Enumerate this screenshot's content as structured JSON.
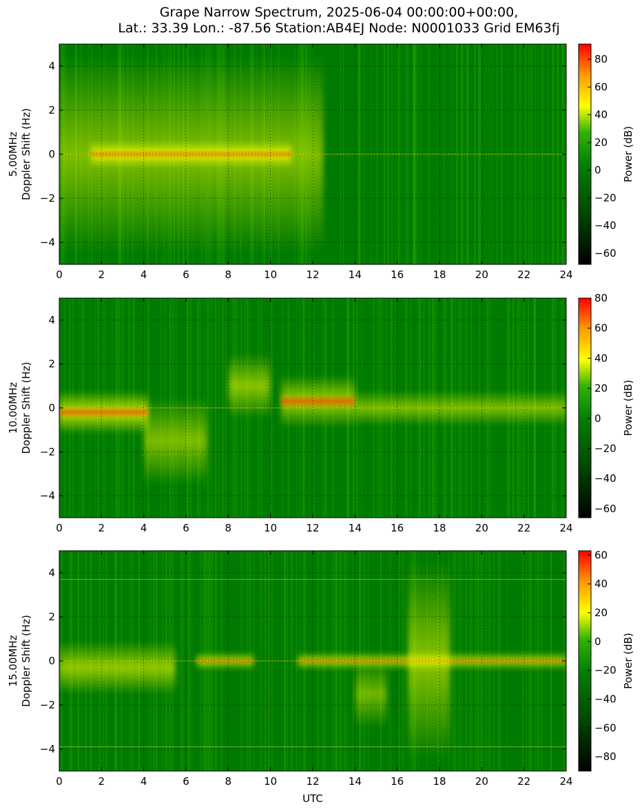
{
  "title": {
    "line1": "Grape Narrow Spectrum, 2025-06-04 00:00:00+00:00,",
    "line2": "Lat.: 33.39 Lon.: -87.56 Station:AB4EJ Node: N0001033 Grid EM63fj"
  },
  "colors": {
    "background_green": "#007a00",
    "mid_green": "#22a800",
    "yellow": "#ffff00",
    "orange": "#ff9900",
    "red": "#ff0000"
  },
  "chart_data": [
    {
      "type": "heatmap",
      "id": "panel-5mhz",
      "ylabel_line1": "5.00MHz",
      "ylabel_line2": "Doppler Shift (Hz)",
      "xlabel": "",
      "xlim": [
        0,
        24
      ],
      "ylim": [
        -5,
        5
      ],
      "xticks": [
        0,
        2,
        4,
        6,
        8,
        10,
        12,
        14,
        16,
        18,
        20,
        22,
        24
      ],
      "yticks": [
        4,
        2,
        0,
        -2,
        -4
      ],
      "grid": true,
      "colorbar": {
        "label": "Power (dB)",
        "range": [
          -68,
          91
        ],
        "ticks": [
          80,
          60,
          40,
          20,
          0,
          -20,
          -40,
          -60
        ]
      },
      "features": [
        {
          "from": 0,
          "to": 12.5,
          "spread": 4.5,
          "level": 0.55
        },
        {
          "from": 1.5,
          "to": 11,
          "center": 0,
          "spread": 0.6,
          "level": 0.85
        }
      ]
    },
    {
      "type": "heatmap",
      "id": "panel-10mhz",
      "ylabel_line1": "10.00MHz",
      "ylabel_line2": "Doppler Shift (Hz)",
      "xlabel": "",
      "xlim": [
        0,
        24
      ],
      "ylim": [
        -5,
        5
      ],
      "xticks": [
        0,
        2,
        4,
        6,
        8,
        10,
        12,
        14,
        16,
        18,
        20,
        22,
        24
      ],
      "yticks": [
        4,
        2,
        0,
        -2,
        -4
      ],
      "grid": true,
      "colorbar": {
        "label": "Power (dB)",
        "range": [
          -66,
          80
        ],
        "ticks": [
          80,
          60,
          40,
          20,
          0,
          -20,
          -40,
          -60
        ]
      },
      "features": [
        {
          "from": 0,
          "to": 4.2,
          "center": -0.2,
          "spread": 1.0,
          "level": 0.85
        },
        {
          "from": 4,
          "to": 7,
          "center": -1.5,
          "spread": 2.0,
          "level": 0.55
        },
        {
          "from": 8,
          "to": 10,
          "center": 1.0,
          "spread": 1.5,
          "level": 0.6
        },
        {
          "from": 10.5,
          "to": 14,
          "center": 0.3,
          "spread": 1.2,
          "level": 0.7
        },
        {
          "from": 14,
          "to": 24,
          "center": 0,
          "spread": 0.8,
          "level": 0.55
        }
      ]
    },
    {
      "type": "heatmap",
      "id": "panel-15mhz",
      "ylabel_line1": "15.00MHz",
      "ylabel_line2": "Doppler Shift (Hz)",
      "xlabel": "UTC",
      "xlim": [
        0,
        24
      ],
      "ylim": [
        -5,
        5
      ],
      "xticks": [
        0,
        2,
        4,
        6,
        8,
        10,
        12,
        14,
        16,
        18,
        20,
        22,
        24
      ],
      "yticks": [
        4,
        2,
        0,
        -2,
        -4
      ],
      "grid": true,
      "colorbar": {
        "label": "Power (dB)",
        "range": [
          -90,
          63
        ],
        "ticks": [
          60,
          40,
          20,
          0,
          -20,
          -40,
          -60,
          -80
        ]
      },
      "features": [
        {
          "from": 0,
          "to": 5.5,
          "center": -0.3,
          "spread": 1.2,
          "level": 0.65
        },
        {
          "from": 6.5,
          "to": 9.2,
          "center": 0,
          "spread": 0.4,
          "level": 0.75
        },
        {
          "from": 11.3,
          "to": 24,
          "center": 0,
          "spread": 0.4,
          "level": 0.75
        },
        {
          "from": 14,
          "to": 15.5,
          "center": -1.5,
          "spread": 1.5,
          "level": 0.5
        },
        {
          "from": 16.5,
          "to": 18.5,
          "center": 0,
          "spread": 4.5,
          "level": 0.6
        }
      ],
      "lines": [
        3.7,
        -3.9
      ]
    }
  ]
}
